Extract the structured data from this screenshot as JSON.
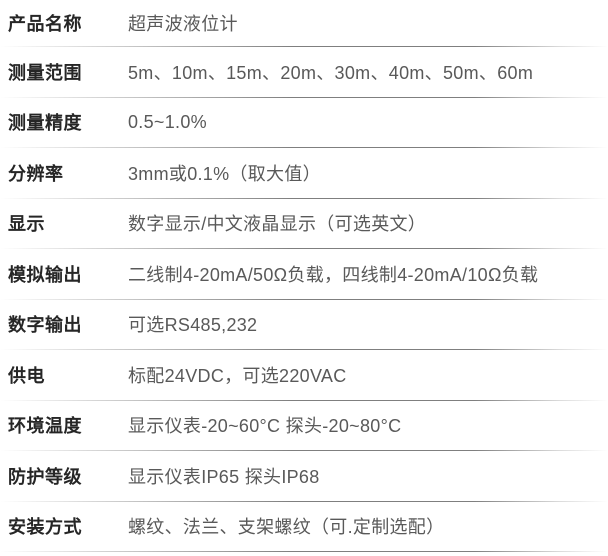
{
  "table": {
    "rows": [
      {
        "label": "产品名称",
        "value": "超声波液位计"
      },
      {
        "label": "测量范围",
        "value": "5m、10m、15m、20m、30m、40m、50m、60m"
      },
      {
        "label": "测量精度",
        "value": "0.5~1.0%"
      },
      {
        "label": "分辨率",
        "value": "3mm或0.1%（取大值）"
      },
      {
        "label": "显示",
        "value": "数字显示/中文液晶显示（可选英文）"
      },
      {
        "label": "模拟输出",
        "value": "二线制4-20mA/50Ω负载，四线制4-20mA/10Ω负载"
      },
      {
        "label": "数字输出",
        "value": "可选RS485,232"
      },
      {
        "label": "供电",
        "value": "标配24VDC，可选220VAC"
      },
      {
        "label": "环境温度",
        "value": "显示仪表-20~60°C 探头-20~80°C"
      },
      {
        "label": "防护等级",
        "value": "显示仪表IP65 探头IP68"
      },
      {
        "label": "安装方式",
        "value": "螺纹、法兰、支架螺纹（可.定制选配）"
      }
    ],
    "colors": {
      "label_text": "#262626",
      "value_text": "#595959",
      "divider": "#787878",
      "background": "#ffffff"
    }
  }
}
